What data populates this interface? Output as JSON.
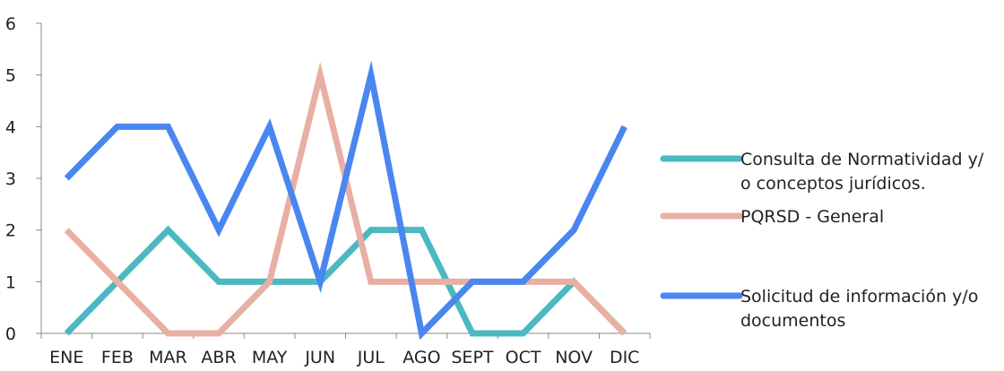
{
  "chart_data": {
    "type": "line",
    "title": "",
    "xlabel": "",
    "ylabel": "",
    "categories": [
      "ENE",
      "FEB",
      "MAR",
      "ABR",
      "MAY",
      "JUN",
      "JUL",
      "AGO",
      "SEPT",
      "OCT",
      "NOV",
      "DIC"
    ],
    "ylim": [
      0,
      6
    ],
    "yticks": [
      0,
      1,
      2,
      3,
      4,
      5,
      6
    ],
    "grid": false,
    "legend": "right",
    "series": [
      {
        "name": "Consulta de Normatividad y/ o conceptos jurídicos.",
        "label_lines": [
          "Consulta de Normatividad y/",
          "o conceptos jurídicos."
        ],
        "color": "#4bb8c2",
        "values": [
          0,
          1,
          2,
          1,
          1,
          1,
          2,
          2,
          0,
          0,
          1,
          0
        ]
      },
      {
        "name": "PQRSD - General",
        "label_lines": [
          "PQRSD - General"
        ],
        "color": "#e8afa3",
        "values": [
          2,
          1,
          0,
          0,
          1,
          5,
          1,
          1,
          1,
          1,
          1,
          0
        ]
      },
      {
        "name": "Solicitud de información y/o documentos",
        "label_lines": [
          "Solicitud de información y/o",
          "documentos"
        ],
        "color": "#4a86f0",
        "values": [
          3,
          4,
          4,
          2,
          4,
          1,
          5,
          0,
          1,
          1,
          2,
          4
        ]
      }
    ]
  }
}
